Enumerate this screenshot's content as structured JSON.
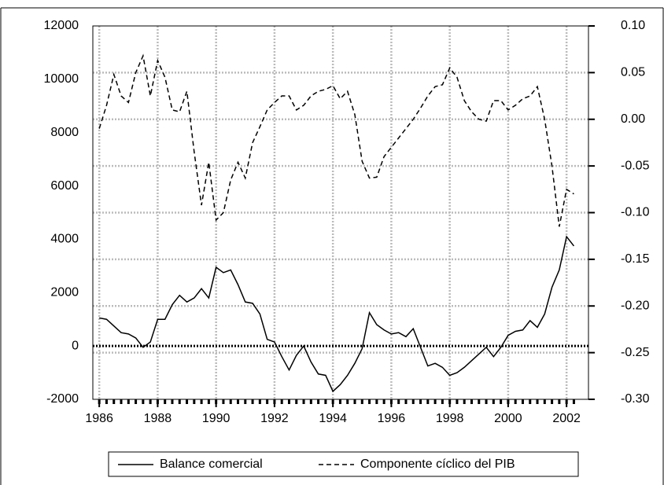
{
  "chart_data": {
    "type": "line",
    "x": [
      1986,
      1986.25,
      1986.5,
      1986.75,
      1987,
      1987.25,
      1987.5,
      1987.75,
      1988,
      1988.25,
      1988.5,
      1988.75,
      1989,
      1989.25,
      1989.5,
      1989.75,
      1990,
      1990.25,
      1990.5,
      1990.75,
      1991,
      1991.25,
      1991.5,
      1991.75,
      1992,
      1992.25,
      1992.5,
      1992.75,
      1993,
      1993.25,
      1993.5,
      1993.75,
      1994,
      1994.25,
      1994.5,
      1994.75,
      1995,
      1995.25,
      1995.5,
      1995.75,
      1996,
      1996.25,
      1996.5,
      1996.75,
      1997,
      1997.25,
      1997.5,
      1997.75,
      1998,
      1998.25,
      1998.5,
      1998.75,
      1999,
      1999.25,
      1999.5,
      1999.75,
      2000,
      2000.25,
      2000.5,
      2000.75,
      2001,
      2001.25,
      2001.5,
      2001.75,
      2002,
      2002.25
    ],
    "series": [
      {
        "name": "Balance comercial",
        "color": "#000000",
        "dash": "solid",
        "values": [
          1050,
          1000,
          750,
          500,
          450,
          300,
          -50,
          150,
          1000,
          1000,
          1550,
          1900,
          1650,
          1800,
          2150,
          1800,
          2950,
          2750,
          2850,
          2300,
          1650,
          1600,
          1200,
          250,
          150,
          -400,
          -900,
          -350,
          0,
          -600,
          -1050,
          -1100,
          -1700,
          -1450,
          -1100,
          -650,
          -100,
          1250,
          800,
          600,
          450,
          500,
          350,
          650,
          -50,
          -750,
          -650,
          -800,
          -1100,
          -1000,
          -800,
          -550,
          -300,
          -50,
          -400,
          -50,
          400,
          550,
          600,
          950,
          700,
          1200,
          2200,
          2850,
          4100,
          3750
        ]
      },
      {
        "name": "Componente cíclico del PIB",
        "color": "#000000",
        "dash": "dashed",
        "axis": "y2",
        "values": [
          -0.01,
          0.015,
          0.048,
          0.025,
          0.018,
          0.05,
          0.068,
          0.025,
          0.063,
          0.045,
          0.01,
          0.008,
          0.03,
          -0.035,
          -0.092,
          -0.046,
          -0.108,
          -0.1,
          -0.065,
          -0.046,
          -0.063,
          -0.025,
          -0.008,
          0.01,
          0.018,
          0.025,
          0.025,
          0.01,
          0.015,
          0.025,
          0.03,
          0.032,
          0.036,
          0.022,
          0.03,
          0.005,
          -0.045,
          -0.063,
          -0.062,
          -0.04,
          -0.03,
          -0.02,
          -0.01,
          0,
          0.012,
          0.025,
          0.035,
          0.037,
          0.055,
          0.045,
          0.02,
          0.008,
          0,
          -0.002,
          0.02,
          0.02,
          0.01,
          0.015,
          0.022,
          0.025,
          0.035,
          0,
          -0.05,
          -0.115,
          -0.075,
          -0.08
        ]
      }
    ],
    "xlim": [
      1985.78,
      2002.75
    ],
    "xticks": [
      1986,
      1988,
      1990,
      1992,
      1994,
      1996,
      1998,
      2000,
      2002
    ],
    "ylim": [
      -2000,
      12000
    ],
    "yticks": [
      -2000,
      0,
      2000,
      4000,
      6000,
      8000,
      10000,
      12000
    ],
    "y2lim": [
      -0.3,
      0.1
    ],
    "y2ticks": [
      {
        "value": -0.3,
        "label": "-0.30"
      },
      {
        "value": -0.25,
        "label": "-0.25"
      },
      {
        "value": -0.2,
        "label": "-0.20"
      },
      {
        "value": -0.15,
        "label": "-0.15"
      },
      {
        "value": -0.1,
        "label": "-0.10"
      },
      {
        "value": -0.05,
        "label": "-0.05"
      },
      {
        "value": 0,
        "label": "0.00"
      },
      {
        "value": 0.05,
        "label": "0.05"
      },
      {
        "value": 0.1,
        "label": "0.10"
      }
    ],
    "grid": true,
    "zero_line": true,
    "legend": "bottom"
  }
}
